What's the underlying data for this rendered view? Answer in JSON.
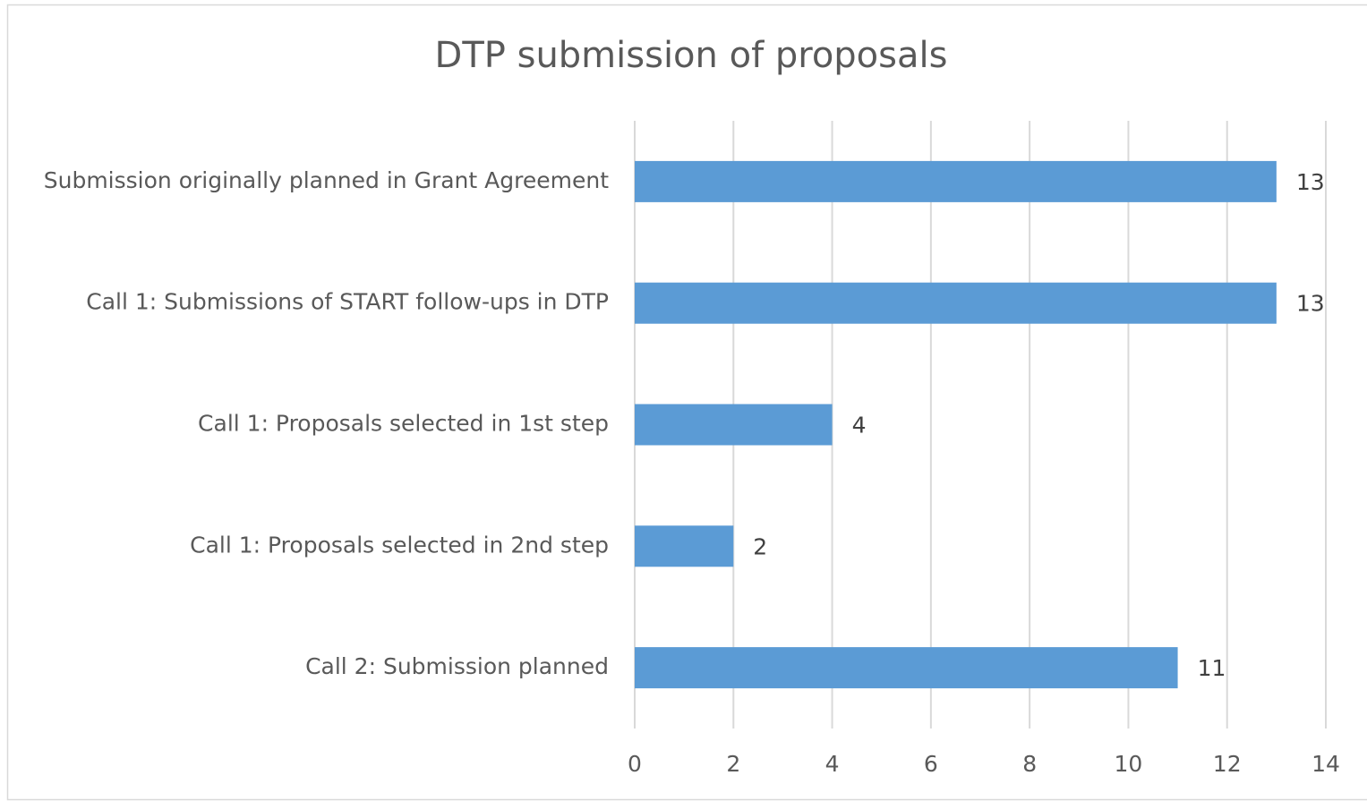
{
  "chart_data": {
    "type": "barh",
    "title": "DTP submission of proposals",
    "categories": [
      "Submission originally planned in Grant Agreement",
      "Call 1: Submissions of START follow-ups in DTP",
      "Call 1: Proposals selected in 1st step",
      "Call 1: Proposals selected in 2nd step",
      "Call 2: Submission planned"
    ],
    "values": [
      13,
      13,
      4,
      2,
      11
    ],
    "color": "#5b9bd5",
    "xlim": [
      0,
      14
    ],
    "xticks": [
      0,
      2,
      4,
      6,
      8,
      10,
      12,
      14
    ],
    "grid": true,
    "data_labels": true
  }
}
